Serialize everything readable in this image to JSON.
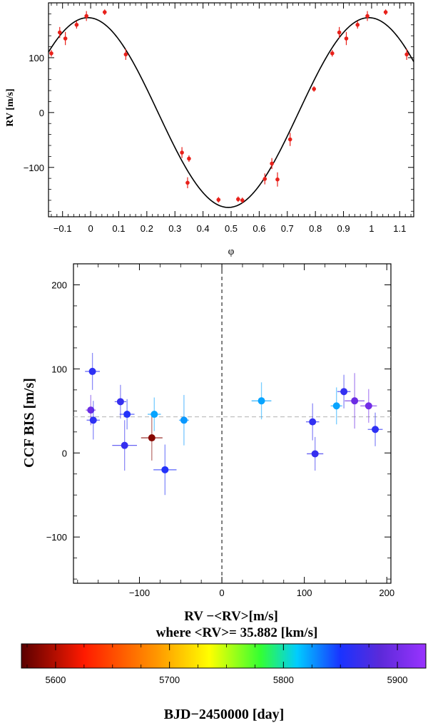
{
  "chart_data": [
    {
      "type": "scatter",
      "subtype": "phase-folded radial velocity",
      "xlabel": "φ",
      "ylabel": "RV [m/s]",
      "xlim": [
        -0.15,
        1.15
      ],
      "ylim": [
        -190,
        200
      ],
      "xticks": [
        -0.1,
        0,
        0.1,
        0.2,
        0.3,
        0.4,
        0.5,
        0.6,
        0.7,
        0.8,
        0.9,
        1,
        1.1
      ],
      "xtick_labels": [
        "−0.1",
        "0",
        "0.1",
        "0.2",
        "0.3",
        "0.4",
        "0.5",
        "0.6",
        "0.7",
        "0.8",
        "0.9",
        "1",
        "1.1"
      ],
      "yticks": [
        -100,
        0,
        100
      ],
      "ytick_labels": [
        "−100",
        "0",
        "100"
      ],
      "model": {
        "type": "sinusoid",
        "amplitude": 173,
        "phase_of_max": 0.99,
        "color": "#000000"
      },
      "point_color": "#e8201a",
      "points": [
        {
          "x": -0.14,
          "y": 108,
          "err": 6
        },
        {
          "x": -0.11,
          "y": 146,
          "err": 10
        },
        {
          "x": -0.09,
          "y": 135,
          "err": 12
        },
        {
          "x": -0.05,
          "y": 160,
          "err": 7
        },
        {
          "x": -0.015,
          "y": 176,
          "err": 9
        },
        {
          "x": 0.05,
          "y": 183,
          "err": 5
        },
        {
          "x": 0.125,
          "y": 106,
          "err": 10
        },
        {
          "x": 0.325,
          "y": -73,
          "err": 10
        },
        {
          "x": 0.345,
          "y": -128,
          "err": 10
        },
        {
          "x": 0.35,
          "y": -84,
          "err": 6
        },
        {
          "x": 0.455,
          "y": -159,
          "err": 5
        },
        {
          "x": 0.525,
          "y": -158,
          "err": 5
        },
        {
          "x": 0.54,
          "y": -160,
          "err": 5
        },
        {
          "x": 0.62,
          "y": -121,
          "err": 10
        },
        {
          "x": 0.645,
          "y": -93,
          "err": 10
        },
        {
          "x": 0.665,
          "y": -122,
          "err": 13
        },
        {
          "x": 0.71,
          "y": -49,
          "err": 12
        },
        {
          "x": 0.795,
          "y": 43,
          "err": 5
        },
        {
          "x": 0.86,
          "y": 108,
          "err": 6
        },
        {
          "x": 0.885,
          "y": 146,
          "err": 10
        },
        {
          "x": 0.91,
          "y": 135,
          "err": 12
        },
        {
          "x": 0.95,
          "y": 160,
          "err": 7
        },
        {
          "x": 0.985,
          "y": 176,
          "err": 9
        },
        {
          "x": 1.05,
          "y": 183,
          "err": 5
        },
        {
          "x": 1.125,
          "y": 106,
          "err": 10
        }
      ]
    },
    {
      "type": "scatter",
      "subtype": "bisector span vs radial velocity",
      "xlabel_line1": "RV −<RV>[m/s]",
      "xlabel_line2": "where <RV>= 35.882 [km/s]",
      "ylabel": "CCF BIS [m/s]",
      "xlim": [
        -180,
        205
      ],
      "ylim": [
        -155,
        225
      ],
      "xticks": [
        -100,
        0,
        100,
        200
      ],
      "xtick_labels": [
        "−100",
        "0",
        "100",
        "200"
      ],
      "yticks": [
        -100,
        0,
        100,
        200
      ],
      "ytick_labels": [
        "−100",
        "0",
        "100",
        "200"
      ],
      "vline_x": 0,
      "hline_y": 43,
      "points": [
        {
          "rv": -157,
          "bis": 97,
          "rv_err": 9,
          "bis_err": 22,
          "date": 5860
        },
        {
          "rv": -159,
          "bis": 51,
          "rv_err": 6,
          "bis_err": 18,
          "date": 5895
        },
        {
          "rv": -156,
          "bis": 39,
          "rv_err": 8,
          "bis_err": 23,
          "date": 5860
        },
        {
          "rv": -123,
          "bis": 61,
          "rv_err": 7,
          "bis_err": 20,
          "date": 5865
        },
        {
          "rv": -118,
          "bis": 9,
          "rv_err": 15,
          "bis_err": 30,
          "date": 5865
        },
        {
          "rv": -115,
          "bis": 46,
          "rv_err": 9,
          "bis_err": 18,
          "date": 5855
        },
        {
          "rv": -85,
          "bis": 18,
          "rv_err": 13,
          "bis_err": 27,
          "date": 5585
        },
        {
          "rv": -82,
          "bis": 46,
          "rv_err": 8,
          "bis_err": 20,
          "date": 5822
        },
        {
          "rv": -69,
          "bis": -20,
          "rv_err": 14,
          "bis_err": 30,
          "date": 5855
        },
        {
          "rv": -46,
          "bis": 39,
          "rv_err": 6,
          "bis_err": 30,
          "date": 5825
        },
        {
          "rv": 48,
          "bis": 62,
          "rv_err": 12,
          "bis_err": 22,
          "date": 5822
        },
        {
          "rv": 110,
          "bis": 37,
          "rv_err": 8,
          "bis_err": 22,
          "date": 5862
        },
        {
          "rv": 113,
          "bis": -1,
          "rv_err": 10,
          "bis_err": 20,
          "date": 5865
        },
        {
          "rv": 139,
          "bis": 56,
          "rv_err": 7,
          "bis_err": 22,
          "date": 5822
        },
        {
          "rv": 148,
          "bis": 73,
          "rv_err": 8,
          "bis_err": 20,
          "date": 5863
        },
        {
          "rv": 161,
          "bis": 62,
          "rv_err": 12,
          "bis_err": 33,
          "date": 5895
        },
        {
          "rv": 178,
          "bis": 56,
          "rv_err": 10,
          "bis_err": 20,
          "date": 5900
        },
        {
          "rv": 186,
          "bis": 28,
          "rv_err": 9,
          "bis_err": 20,
          "date": 5860
        }
      ]
    },
    {
      "type": "colorbar",
      "label": "BJD−2450000 [day]",
      "range": [
        5570,
        5925
      ],
      "ticks": [
        5600,
        5700,
        5800,
        5900
      ],
      "tick_labels": [
        "5600",
        "5700",
        "5800",
        "5900"
      ],
      "colormap_stops": [
        {
          "value": 5570,
          "color": "#5a0000"
        },
        {
          "value": 5625,
          "color": "#ff1a00"
        },
        {
          "value": 5690,
          "color": "#ff9900"
        },
        {
          "value": 5735,
          "color": "#ffff00"
        },
        {
          "value": 5780,
          "color": "#33ff33"
        },
        {
          "value": 5812,
          "color": "#00ccff"
        },
        {
          "value": 5850,
          "color": "#1a33ff"
        },
        {
          "value": 5885,
          "color": "#5c2ad9"
        },
        {
          "value": 5925,
          "color": "#9933ff"
        }
      ]
    }
  ]
}
